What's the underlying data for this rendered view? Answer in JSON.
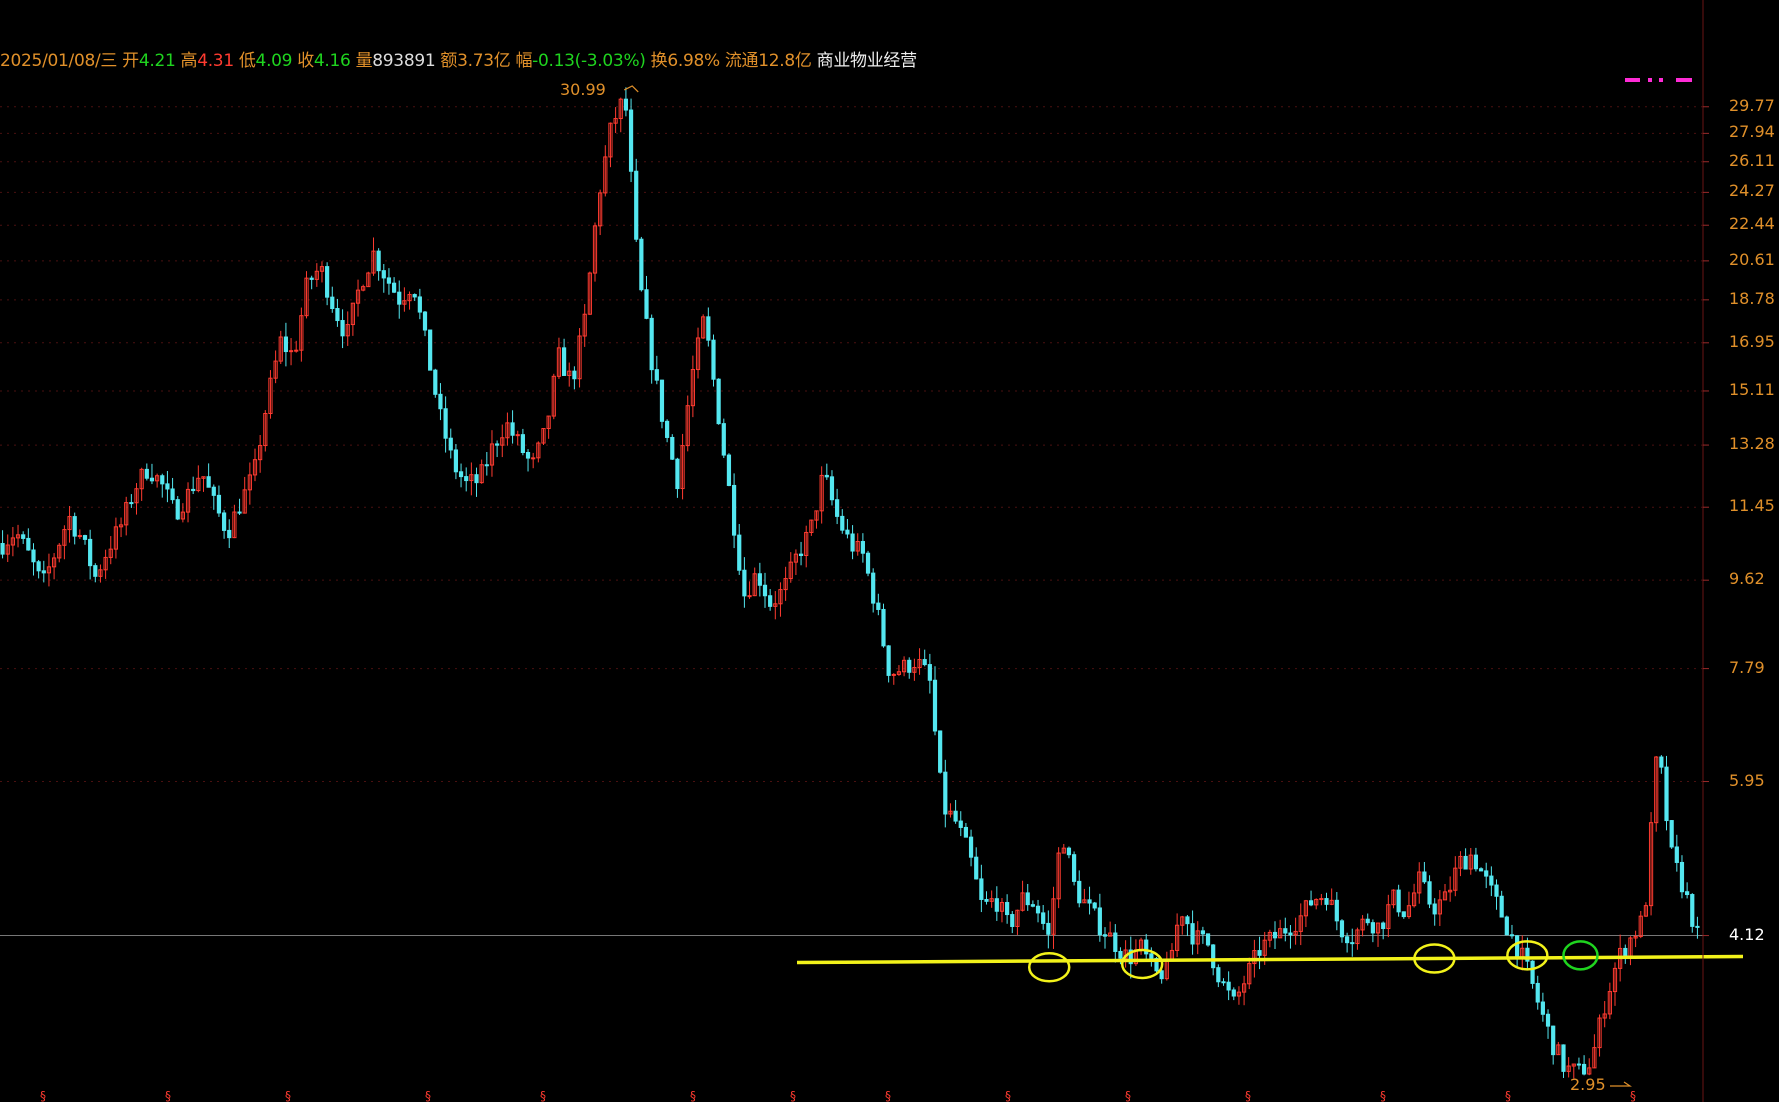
{
  "header": {
    "date": "2025/01/08/三",
    "open_label": "开",
    "open": "4.21",
    "high_label": "高",
    "high": "4.31",
    "low_label": "低",
    "low": "4.09",
    "close_label": "收",
    "close": "4.16",
    "volume_label": "量",
    "volume": "893891",
    "amount_label": "额",
    "amount": "3.73亿",
    "change_label": "幅",
    "change": "-0.13(-3.03%)",
    "turnover_label": "换",
    "turnover": "6.98%",
    "float_label": "流通",
    "float_cap": "12.8亿",
    "industry": "商业物业经营"
  },
  "colors": {
    "background": "#000000",
    "up": "#ff3b30",
    "down": "#54e7f0",
    "axis_text": "#e0902a",
    "support_line": "#f2f21a",
    "circle_yellow": "#f2f21a",
    "circle_green": "#1fd41f",
    "legend_magenta": "#ff2bd6"
  },
  "chart_data": {
    "type": "candlestick",
    "scale": "log",
    "y_ticks": [
      29.77,
      27.94,
      26.11,
      24.27,
      22.44,
      20.61,
      18.78,
      16.95,
      15.11,
      13.28,
      11.45,
      9.62,
      7.79,
      5.95,
      4.12
    ],
    "ylim": [
      2.85,
      32.5
    ],
    "high_marker": "30.99",
    "low_marker": "2.95",
    "current_price": 4.12,
    "support_price": 3.9,
    "trend_points": [
      10.5,
      10.8,
      10.2,
      9.5,
      10.3,
      11.2,
      10.6,
      9.7,
      10.4,
      11.0,
      12.0,
      12.6,
      12.1,
      11.3,
      11.8,
      12.5,
      11.5,
      10.8,
      11.6,
      12.4,
      14.8,
      17.0,
      16.4,
      19.5,
      20.3,
      18.5,
      17.2,
      19.5,
      21.0,
      19.8,
      18.8,
      19.6,
      16.8,
      14.3,
      12.7,
      12.1,
      12.2,
      13.2,
      14.0,
      13.3,
      12.6,
      13.7,
      16.4,
      15.4,
      18.0,
      24.0,
      28.5,
      30.5,
      20.0,
      16.3,
      13.8,
      12.2,
      15.5,
      18.0,
      14.5,
      11.6,
      9.3,
      9.8,
      9.1,
      9.4,
      10.2,
      10.8,
      12.4,
      11.2,
      10.5,
      10.2,
      9.0,
      7.7,
      7.8,
      7.95,
      7.6,
      5.6,
      5.4,
      5.0,
      4.4,
      4.5,
      4.2,
      4.5,
      4.45,
      4.1,
      5.3,
      4.6,
      4.4,
      4.2,
      4.05,
      3.9,
      4.0,
      3.75,
      3.8,
      4.4,
      4.1,
      4.05,
      3.7,
      3.5,
      3.75,
      4.0,
      4.1,
      4.2,
      4.3,
      4.5,
      4.55,
      4.2,
      4.1,
      4.3,
      4.2,
      4.5,
      4.35,
      4.7,
      4.4,
      4.5,
      4.9,
      5.0,
      4.7,
      4.4,
      4.1,
      3.85,
      3.5,
      3.2,
      3.0,
      2.97,
      3.05,
      3.5,
      3.9,
      4.1,
      4.3,
      6.5,
      5.0,
      4.6,
      4.12
    ],
    "annotation_circles": [
      {
        "x_index": 79,
        "price": 3.82,
        "color": "yellow"
      },
      {
        "x_index": 86,
        "price": 3.85,
        "color": "yellow"
      },
      {
        "x_index": 108,
        "price": 3.9,
        "color": "yellow"
      },
      {
        "x_index": 115,
        "price": 3.93,
        "color": "yellow"
      },
      {
        "x_index": 119,
        "price": 3.93,
        "color": "green"
      }
    ]
  }
}
